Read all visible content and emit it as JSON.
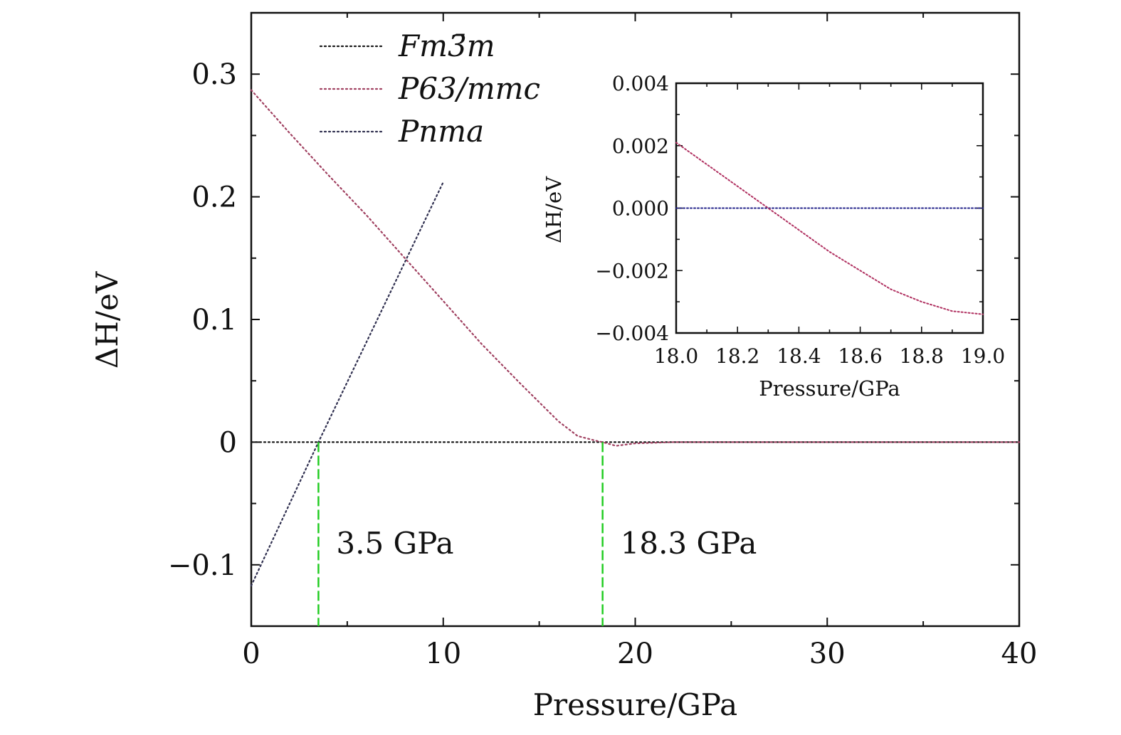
{
  "chart_data": [
    {
      "type": "line",
      "title": "",
      "xlabel": "Pressure/GPa",
      "ylabel": "ΔH/eV",
      "xlim": [
        0,
        40
      ],
      "ylim": [
        -0.15,
        0.35
      ],
      "xticks": [
        0,
        10,
        20,
        30,
        40
      ],
      "xtick_labels": [
        "0",
        "10",
        "20",
        "30",
        "40"
      ],
      "yticks": [
        -0.1,
        0,
        0.1,
        0.2,
        0.3
      ],
      "ytick_labels": [
        "−0.1",
        "0",
        "0.1",
        "0.2",
        "0.3"
      ],
      "grid": false,
      "legend_position": "top-left",
      "series": [
        {
          "name": "Fm3̄m",
          "color": "#1a1a1a",
          "line_style": "dotted",
          "x": [
            0,
            40
          ],
          "y": [
            0,
            0
          ]
        },
        {
          "name": "P63/mmc",
          "color": "#a04060",
          "line_style": "dotted",
          "x": [
            0,
            2,
            4,
            6,
            8,
            10,
            12,
            14,
            16,
            17,
            18,
            18.3,
            19,
            20,
            22,
            40
          ],
          "y": [
            0.287,
            0.252,
            0.218,
            0.185,
            0.15,
            0.115,
            0.08,
            0.048,
            0.017,
            0.005,
            0.001,
            0.0,
            -0.003,
            -0.001,
            0,
            0
          ]
        },
        {
          "name": "Pnma",
          "color": "#303050",
          "line_style": "dotted",
          "x": [
            0,
            3.5,
            10
          ],
          "y": [
            -0.117,
            0,
            0.212
          ]
        }
      ],
      "transitions": [
        {
          "x": 3.5,
          "label": "3.5 GPa",
          "color": "#22cc22"
        },
        {
          "x": 18.3,
          "label": "18.3 GPa",
          "color": "#22cc22"
        }
      ]
    },
    {
      "type": "line",
      "title": "",
      "xlabel": "Pressure/GPa",
      "ylabel": "ΔH/eV",
      "xlim": [
        18.0,
        19.0
      ],
      "ylim": [
        -0.004,
        0.004
      ],
      "xticks": [
        18.0,
        18.2,
        18.4,
        18.6,
        18.8,
        19.0
      ],
      "xtick_labels": [
        "18.0",
        "18.2",
        "18.4",
        "18.6",
        "18.8",
        "19.0"
      ],
      "yticks": [
        -0.004,
        -0.002,
        0.0,
        0.002,
        0.004
      ],
      "ytick_labels": [
        "−0.004",
        "−0.002",
        "0.000",
        "0.002",
        "0.004"
      ],
      "grid": false,
      "series": [
        {
          "color": "#22228a",
          "line_style": "dotted",
          "x": [
            18.0,
            19.0
          ],
          "y": [
            0,
            0
          ]
        },
        {
          "color": "#b03060",
          "line_style": "dotted",
          "x": [
            18.0,
            18.1,
            18.2,
            18.3,
            18.4,
            18.5,
            18.6,
            18.7,
            18.8,
            18.9,
            19.0
          ],
          "y": [
            0.0021,
            0.0014,
            0.0007,
            0.0,
            -0.0007,
            -0.0014,
            -0.002,
            -0.0026,
            -0.003,
            -0.0033,
            -0.0034
          ]
        }
      ]
    }
  ]
}
